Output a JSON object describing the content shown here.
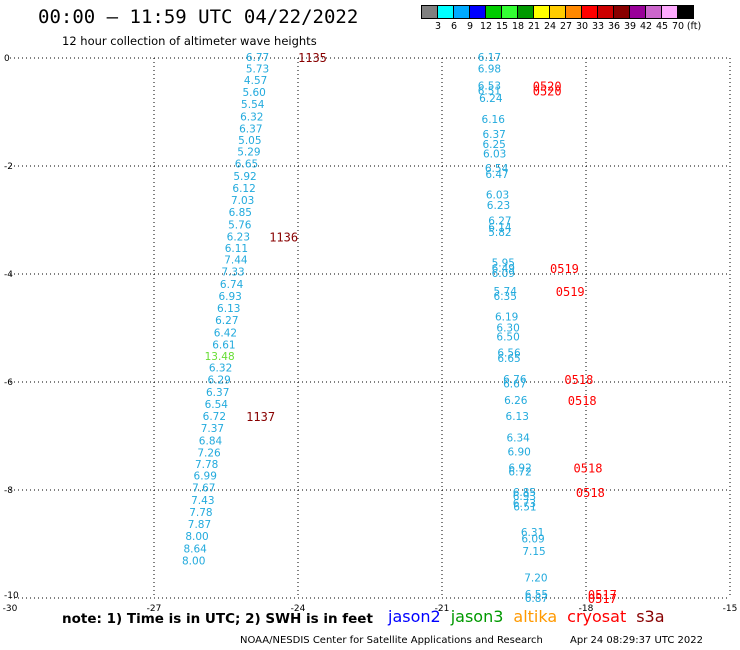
{
  "header": {
    "title": "00:00 – 11:59 UTC 04/22/2022",
    "subtitle": "12 hour collection of altimeter wave heights"
  },
  "colorbar": {
    "colors": [
      "#808080",
      "#00ffff",
      "#00aaff",
      "#0000ff",
      "#00cc00",
      "#33ff33",
      "#009900",
      "#ffff00",
      "#ffcc00",
      "#ff8800",
      "#ff0000",
      "#cc0000",
      "#880000",
      "#990099",
      "#cc66cc",
      "#ffaaff",
      "#000000"
    ],
    "labels": [
      "3",
      "6",
      "9",
      "12",
      "15",
      "18",
      "21",
      "24",
      "27",
      "30",
      "33",
      "36",
      "39",
      "42",
      "45",
      "70",
      "(ft)"
    ]
  },
  "footer": {
    "note": "note: 1) Time is in UTC; 2) SWH is in feet",
    "satellites": [
      {
        "name": "jason2",
        "color": "#0000ff"
      },
      {
        "name": "jason3",
        "color": "#009900"
      },
      {
        "name": "altika",
        "color": "#ff9900"
      },
      {
        "name": "cryosat",
        "color": "#ff0000"
      },
      {
        "name": "s3a",
        "color": "#880000"
      }
    ],
    "credit": "NOAA/NESDIS Center for Satellite Applications and Research",
    "timestamp": "Apr 24 08:29:37 UTC 2022"
  },
  "chart_data": {
    "type": "scatter",
    "xlim": [
      -30,
      -15
    ],
    "ylim": [
      -10,
      0
    ],
    "xticks": [
      -30,
      -27,
      -24,
      -21,
      -18,
      -15
    ],
    "yticks": [
      0,
      -2,
      -4,
      -6,
      -8,
      -10
    ],
    "grid": true,
    "series": [
      {
        "name": "s3a",
        "label_color": "#880000",
        "points": [
          {
            "x": -24.62,
            "y": 0.0,
            "v": "6.77"
          },
          {
            "x": -24.62,
            "y": -0.21,
            "v": "5.73"
          },
          {
            "x": -24.66,
            "y": -0.43,
            "v": "4.57"
          },
          {
            "x": -24.69,
            "y": -0.65,
            "v": "5.60"
          },
          {
            "x": -24.72,
            "y": -0.87,
            "v": "5.54"
          },
          {
            "x": -24.74,
            "y": -1.1,
            "v": "6.32"
          },
          {
            "x": -24.76,
            "y": -1.32,
            "v": "6.37"
          },
          {
            "x": -24.78,
            "y": -1.54,
            "v": "5.05"
          },
          {
            "x": -24.8,
            "y": -1.75,
            "v": "5.29"
          },
          {
            "x": -24.85,
            "y": -1.97,
            "v": "6.65"
          },
          {
            "x": -24.88,
            "y": -2.2,
            "v": "5.92"
          },
          {
            "x": -24.9,
            "y": -2.43,
            "v": "6.12"
          },
          {
            "x": -24.93,
            "y": -2.65,
            "v": "7.03"
          },
          {
            "x": -24.98,
            "y": -2.87,
            "v": "6.85"
          },
          {
            "x": -24.99,
            "y": -3.1,
            "v": "5.76"
          },
          {
            "x": -25.02,
            "y": -3.32,
            "v": "6.23"
          },
          {
            "x": -25.06,
            "y": -3.54,
            "v": "6.11"
          },
          {
            "x": -25.07,
            "y": -3.75,
            "v": "7.44"
          },
          {
            "x": -25.13,
            "y": -3.97,
            "v": "7.33"
          },
          {
            "x": -25.16,
            "y": -4.2,
            "v": "6.74"
          },
          {
            "x": -25.19,
            "y": -4.43,
            "v": "6.93"
          },
          {
            "x": -25.22,
            "y": -4.65,
            "v": "6.13"
          },
          {
            "x": -25.26,
            "y": -4.87,
            "v": "6.27"
          },
          {
            "x": -25.29,
            "y": -5.1,
            "v": "6.42"
          },
          {
            "x": -25.32,
            "y": -5.32,
            "v": "6.61"
          },
          {
            "x": -25.34,
            "y": -5.54,
            "v": "13.48",
            "color": "#66dd33"
          },
          {
            "x": -25.39,
            "y": -5.75,
            "v": "6.32"
          },
          {
            "x": -25.42,
            "y": -5.97,
            "v": "6.29"
          },
          {
            "x": -25.45,
            "y": -6.2,
            "v": "6.37"
          },
          {
            "x": -25.48,
            "y": -6.43,
            "v": "6.54"
          },
          {
            "x": -25.52,
            "y": -6.65,
            "v": "6.72"
          },
          {
            "x": -25.56,
            "y": -6.87,
            "v": "7.37"
          },
          {
            "x": -25.6,
            "y": -7.1,
            "v": "6.84"
          },
          {
            "x": -25.63,
            "y": -7.32,
            "v": "7.26"
          },
          {
            "x": -25.68,
            "y": -7.54,
            "v": "7.78"
          },
          {
            "x": -25.71,
            "y": -7.75,
            "v": "6.99"
          },
          {
            "x": -25.74,
            "y": -7.97,
            "v": "7.67"
          },
          {
            "x": -25.76,
            "y": -8.2,
            "v": "7.43"
          },
          {
            "x": -25.8,
            "y": -8.43,
            "v": "7.78"
          },
          {
            "x": -25.83,
            "y": -8.65,
            "v": "7.87"
          },
          {
            "x": -25.88,
            "y": -8.87,
            "v": "8.00"
          },
          {
            "x": -25.92,
            "y": -9.1,
            "v": "8.64"
          },
          {
            "x": -25.95,
            "y": -9.32,
            "v": "8.00"
          }
        ],
        "time_labels": [
          {
            "x": -24.0,
            "y": 0.0,
            "text": "1135"
          },
          {
            "x": -24.6,
            "y": -3.32,
            "text": "1136"
          },
          {
            "x": -25.08,
            "y": -6.65,
            "text": "1137"
          }
        ]
      },
      {
        "name": "cryosat",
        "label_color": "#ff0000",
        "points": [
          {
            "x": -19.79,
            "y": 0.0,
            "v": "6.17"
          },
          {
            "x": -19.79,
            "y": -0.21,
            "v": "6.98"
          },
          {
            "x": -19.79,
            "y": -0.53,
            "v": "6.53"
          },
          {
            "x": -19.79,
            "y": -0.62,
            "v": "6.51"
          },
          {
            "x": -19.76,
            "y": -0.76,
            "v": "6.24"
          },
          {
            "x": -19.71,
            "y": -1.15,
            "v": "6.16"
          },
          {
            "x": -19.69,
            "y": -1.43,
            "v": "6.37"
          },
          {
            "x": -19.69,
            "y": -1.61,
            "v": "6.25"
          },
          {
            "x": -19.68,
            "y": -1.79,
            "v": "6.03"
          },
          {
            "x": -19.64,
            "y": -2.06,
            "v": "6.54"
          },
          {
            "x": -19.63,
            "y": -2.17,
            "v": "6.47"
          },
          {
            "x": -19.62,
            "y": -2.55,
            "v": "6.03"
          },
          {
            "x": -19.6,
            "y": -2.74,
            "v": "6.23"
          },
          {
            "x": -19.57,
            "y": -3.03,
            "v": "6.27"
          },
          {
            "x": -19.57,
            "y": -3.15,
            "v": "6.14"
          },
          {
            "x": -19.57,
            "y": -3.24,
            "v": "5.82"
          },
          {
            "x": -19.5,
            "y": -3.81,
            "v": "5.95"
          },
          {
            "x": -19.5,
            "y": -3.91,
            "v": "6.49"
          },
          {
            "x": -19.5,
            "y": -4.0,
            "v": "6.09"
          },
          {
            "x": -19.46,
            "y": -4.33,
            "v": "5.74"
          },
          {
            "x": -19.46,
            "y": -4.43,
            "v": "6.35"
          },
          {
            "x": -19.43,
            "y": -4.81,
            "v": "6.19"
          },
          {
            "x": -19.4,
            "y": -5.01,
            "v": "6.30"
          },
          {
            "x": -19.4,
            "y": -5.18,
            "v": "6.50"
          },
          {
            "x": -19.38,
            "y": -5.47,
            "v": "6.56"
          },
          {
            "x": -19.38,
            "y": -5.57,
            "v": "6.65"
          },
          {
            "x": -19.26,
            "y": -5.96,
            "v": "6.76"
          },
          {
            "x": -19.26,
            "y": -6.05,
            "v": "6.67"
          },
          {
            "x": -19.24,
            "y": -6.35,
            "v": "6.26"
          },
          {
            "x": -19.21,
            "y": -6.65,
            "v": "6.13"
          },
          {
            "x": -19.19,
            "y": -7.05,
            "v": "6.34"
          },
          {
            "x": -19.17,
            "y": -7.31,
            "v": "6.90"
          },
          {
            "x": -19.15,
            "y": -7.6,
            "v": "6.92"
          },
          {
            "x": -19.15,
            "y": -7.68,
            "v": "6.72"
          },
          {
            "x": -19.06,
            "y": -8.06,
            "v": "6.85"
          },
          {
            "x": -19.06,
            "y": -8.13,
            "v": "6.93"
          },
          {
            "x": -19.06,
            "y": -8.26,
            "v": "6.73"
          },
          {
            "x": -19.05,
            "y": -8.32,
            "v": "6.51"
          },
          {
            "x": -18.89,
            "y": -8.8,
            "v": "6.31"
          },
          {
            "x": -18.88,
            "y": -8.92,
            "v": "6.09"
          },
          {
            "x": -18.86,
            "y": -9.15,
            "v": "7.15"
          },
          {
            "x": -18.82,
            "y": -9.64,
            "v": "7.20"
          },
          {
            "x": -18.81,
            "y": -9.94,
            "v": "6.55"
          },
          {
            "x": -18.81,
            "y": -10.02,
            "v": "6.87"
          }
        ],
        "time_labels": [
          {
            "x": -19.11,
            "y": -0.53,
            "text": "0520"
          },
          {
            "x": -19.11,
            "y": -0.62,
            "text": "0520"
          },
          {
            "x": -18.75,
            "y": -3.91,
            "text": "0519"
          },
          {
            "x": -18.63,
            "y": -4.33,
            "text": "0519"
          },
          {
            "x": -18.45,
            "y": -5.96,
            "text": "0518"
          },
          {
            "x": -18.38,
            "y": -6.35,
            "text": "0518"
          },
          {
            "x": -18.26,
            "y": -7.6,
            "text": "0518"
          },
          {
            "x": -18.21,
            "y": -8.06,
            "text": "0518"
          },
          {
            "x": -17.96,
            "y": -9.94,
            "text": "0517"
          },
          {
            "x": -17.96,
            "y": -10.02,
            "text": "0517"
          }
        ]
      }
    ]
  }
}
